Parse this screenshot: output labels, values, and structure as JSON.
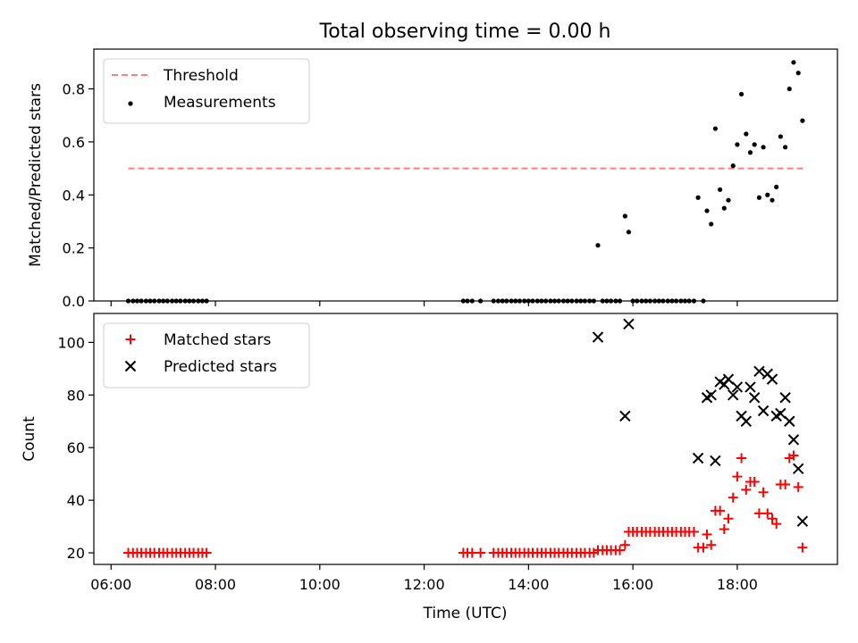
{
  "title": "Total observing time = 0.00 h",
  "colors": {
    "threshold": "#ff7f7f",
    "measurement": "#000000",
    "matched": "#ff0000",
    "predicted": "#000000"
  },
  "x_ticks": [
    {
      "v": 6.0,
      "label": "06:00"
    },
    {
      "v": 8.0,
      "label": "08:00"
    },
    {
      "v": 10.0,
      "label": "10:00"
    },
    {
      "v": 12.0,
      "label": "12:00"
    },
    {
      "v": 14.0,
      "label": "14:00"
    },
    {
      "v": 16.0,
      "label": "16:00"
    },
    {
      "v": 18.0,
      "label": "18:00"
    }
  ],
  "chart_data": [
    {
      "type": "scatter",
      "ylabel": "Matched/Predicted stars",
      "xlim": [
        5.67,
        19.92
      ],
      "ylim": [
        0.0,
        0.95
      ],
      "y_ticks": [
        0.0,
        0.2,
        0.4,
        0.6,
        0.8
      ],
      "y_tick_format": 1,
      "legend": "top-left",
      "threshold": {
        "name": "Threshold",
        "value": 0.5,
        "x": [
          6.33,
          19.33
        ]
      },
      "series": [
        {
          "name": "Measurements",
          "points": [
            [
              6.33,
              0
            ],
            [
              6.42,
              0
            ],
            [
              6.5,
              0
            ],
            [
              6.58,
              0
            ],
            [
              6.67,
              0
            ],
            [
              6.75,
              0
            ],
            [
              6.83,
              0
            ],
            [
              6.92,
              0
            ],
            [
              7.0,
              0
            ],
            [
              7.08,
              0
            ],
            [
              7.17,
              0
            ],
            [
              7.25,
              0
            ],
            [
              7.33,
              0
            ],
            [
              7.42,
              0
            ],
            [
              7.5,
              0
            ],
            [
              7.58,
              0
            ],
            [
              7.67,
              0
            ],
            [
              7.75,
              0
            ],
            [
              7.83,
              0
            ],
            [
              12.75,
              0
            ],
            [
              12.83,
              0
            ],
            [
              12.92,
              0
            ],
            [
              13.08,
              0
            ],
            [
              13.33,
              0
            ],
            [
              13.42,
              0
            ],
            [
              13.5,
              0
            ],
            [
              13.58,
              0
            ],
            [
              13.67,
              0
            ],
            [
              13.75,
              0
            ],
            [
              13.83,
              0
            ],
            [
              13.92,
              0
            ],
            [
              14.0,
              0
            ],
            [
              14.08,
              0
            ],
            [
              14.17,
              0
            ],
            [
              14.25,
              0
            ],
            [
              14.33,
              0
            ],
            [
              14.42,
              0
            ],
            [
              14.5,
              0
            ],
            [
              14.58,
              0
            ],
            [
              14.67,
              0
            ],
            [
              14.75,
              0
            ],
            [
              14.83,
              0
            ],
            [
              14.92,
              0
            ],
            [
              15.0,
              0
            ],
            [
              15.08,
              0
            ],
            [
              15.17,
              0
            ],
            [
              15.25,
              0
            ],
            [
              15.33,
              0.21
            ],
            [
              15.42,
              0
            ],
            [
              15.5,
              0
            ],
            [
              15.58,
              0
            ],
            [
              15.67,
              0
            ],
            [
              15.75,
              0
            ],
            [
              15.85,
              0.32
            ],
            [
              15.92,
              0.26
            ],
            [
              16.0,
              0
            ],
            [
              16.08,
              0
            ],
            [
              16.17,
              0
            ],
            [
              16.25,
              0
            ],
            [
              16.33,
              0
            ],
            [
              16.42,
              0
            ],
            [
              16.5,
              0
            ],
            [
              16.58,
              0
            ],
            [
              16.67,
              0
            ],
            [
              16.75,
              0
            ],
            [
              16.83,
              0
            ],
            [
              16.92,
              0
            ],
            [
              17.0,
              0
            ],
            [
              17.08,
              0
            ],
            [
              17.17,
              0
            ],
            [
              17.35,
              0
            ],
            [
              17.25,
              0.39
            ],
            [
              17.42,
              0.34
            ],
            [
              17.5,
              0.29
            ],
            [
              17.58,
              0.65
            ],
            [
              17.67,
              0.42
            ],
            [
              17.75,
              0.35
            ],
            [
              17.83,
              0.38
            ],
            [
              17.92,
              0.51
            ],
            [
              18.0,
              0.59
            ],
            [
              18.08,
              0.78
            ],
            [
              18.17,
              0.63
            ],
            [
              18.25,
              0.56
            ],
            [
              18.33,
              0.59
            ],
            [
              18.42,
              0.39
            ],
            [
              18.5,
              0.58
            ],
            [
              18.58,
              0.4
            ],
            [
              18.67,
              0.38
            ],
            [
              18.75,
              0.43
            ],
            [
              18.83,
              0.62
            ],
            [
              18.92,
              0.58
            ],
            [
              19.0,
              0.8
            ],
            [
              19.08,
              0.9
            ],
            [
              19.17,
              0.86
            ],
            [
              19.25,
              0.68
            ]
          ]
        }
      ]
    },
    {
      "type": "scatter",
      "xlabel": "Time (UTC)",
      "ylabel": "Count",
      "xlim": [
        5.67,
        19.92
      ],
      "ylim": [
        15.6,
        111.0
      ],
      "y_ticks": [
        20,
        40,
        60,
        80,
        100
      ],
      "y_tick_format": 0,
      "legend": "top-left",
      "series": [
        {
          "name": "Matched stars",
          "marker": "plus",
          "points": [
            [
              6.33,
              20
            ],
            [
              6.42,
              20
            ],
            [
              6.5,
              20
            ],
            [
              6.58,
              20
            ],
            [
              6.67,
              20
            ],
            [
              6.75,
              20
            ],
            [
              6.83,
              20
            ],
            [
              6.92,
              20
            ],
            [
              7.0,
              20
            ],
            [
              7.08,
              20
            ],
            [
              7.17,
              20
            ],
            [
              7.25,
              20
            ],
            [
              7.33,
              20
            ],
            [
              7.42,
              20
            ],
            [
              7.5,
              20
            ],
            [
              7.58,
              20
            ],
            [
              7.67,
              20
            ],
            [
              7.75,
              20
            ],
            [
              7.83,
              20
            ],
            [
              12.75,
              20
            ],
            [
              12.83,
              20
            ],
            [
              12.92,
              20
            ],
            [
              13.08,
              20
            ],
            [
              13.33,
              20
            ],
            [
              13.42,
              20
            ],
            [
              13.5,
              20
            ],
            [
              13.58,
              20
            ],
            [
              13.67,
              20
            ],
            [
              13.75,
              20
            ],
            [
              13.83,
              20
            ],
            [
              13.92,
              20
            ],
            [
              14.0,
              20
            ],
            [
              14.08,
              20
            ],
            [
              14.17,
              20
            ],
            [
              14.25,
              20
            ],
            [
              14.33,
              20
            ],
            [
              14.42,
              20
            ],
            [
              14.5,
              20
            ],
            [
              14.58,
              20
            ],
            [
              14.67,
              20
            ],
            [
              14.75,
              20
            ],
            [
              14.83,
              20
            ],
            [
              14.92,
              20
            ],
            [
              15.0,
              20
            ],
            [
              15.08,
              20
            ],
            [
              15.17,
              20
            ],
            [
              15.25,
              20
            ],
            [
              15.33,
              21
            ],
            [
              15.42,
              21
            ],
            [
              15.5,
              21
            ],
            [
              15.58,
              21
            ],
            [
              15.67,
              21
            ],
            [
              15.75,
              21
            ],
            [
              15.85,
              23
            ],
            [
              15.92,
              28
            ],
            [
              16.0,
              28
            ],
            [
              16.08,
              28
            ],
            [
              16.17,
              28
            ],
            [
              16.25,
              28
            ],
            [
              16.33,
              28
            ],
            [
              16.42,
              28
            ],
            [
              16.5,
              28
            ],
            [
              16.58,
              28
            ],
            [
              16.67,
              28
            ],
            [
              16.75,
              28
            ],
            [
              16.83,
              28
            ],
            [
              16.92,
              28
            ],
            [
              17.0,
              28
            ],
            [
              17.08,
              28
            ],
            [
              17.17,
              28
            ],
            [
              17.35,
              22
            ],
            [
              17.25,
              22
            ],
            [
              17.42,
              27
            ],
            [
              17.5,
              23
            ],
            [
              17.58,
              36
            ],
            [
              17.67,
              36
            ],
            [
              17.75,
              29
            ],
            [
              17.83,
              33
            ],
            [
              17.92,
              41
            ],
            [
              18.0,
              49
            ],
            [
              18.08,
              56
            ],
            [
              18.17,
              44
            ],
            [
              18.25,
              47
            ],
            [
              18.33,
              47
            ],
            [
              18.42,
              35
            ],
            [
              18.5,
              43
            ],
            [
              18.58,
              35
            ],
            [
              18.67,
              33
            ],
            [
              18.75,
              31
            ],
            [
              18.83,
              46
            ],
            [
              18.92,
              46
            ],
            [
              19.0,
              56
            ],
            [
              19.08,
              57
            ],
            [
              19.17,
              45
            ],
            [
              19.25,
              22
            ]
          ]
        },
        {
          "name": "Predicted stars",
          "marker": "x",
          "points": [
            [
              15.33,
              102
            ],
            [
              15.85,
              72
            ],
            [
              15.92,
              107
            ],
            [
              17.25,
              56
            ],
            [
              17.42,
              79
            ],
            [
              17.5,
              80
            ],
            [
              17.58,
              55
            ],
            [
              17.67,
              85
            ],
            [
              17.75,
              84
            ],
            [
              17.83,
              86
            ],
            [
              17.92,
              80
            ],
            [
              18.0,
              83
            ],
            [
              18.08,
              72
            ],
            [
              18.17,
              70
            ],
            [
              18.25,
              83
            ],
            [
              18.33,
              79
            ],
            [
              18.42,
              89
            ],
            [
              18.5,
              74
            ],
            [
              18.58,
              88
            ],
            [
              18.67,
              86
            ],
            [
              18.75,
              72
            ],
            [
              18.83,
              73
            ],
            [
              18.92,
              79
            ],
            [
              19.0,
              70
            ],
            [
              19.08,
              63
            ],
            [
              19.17,
              52
            ],
            [
              19.25,
              32
            ]
          ]
        }
      ]
    }
  ]
}
